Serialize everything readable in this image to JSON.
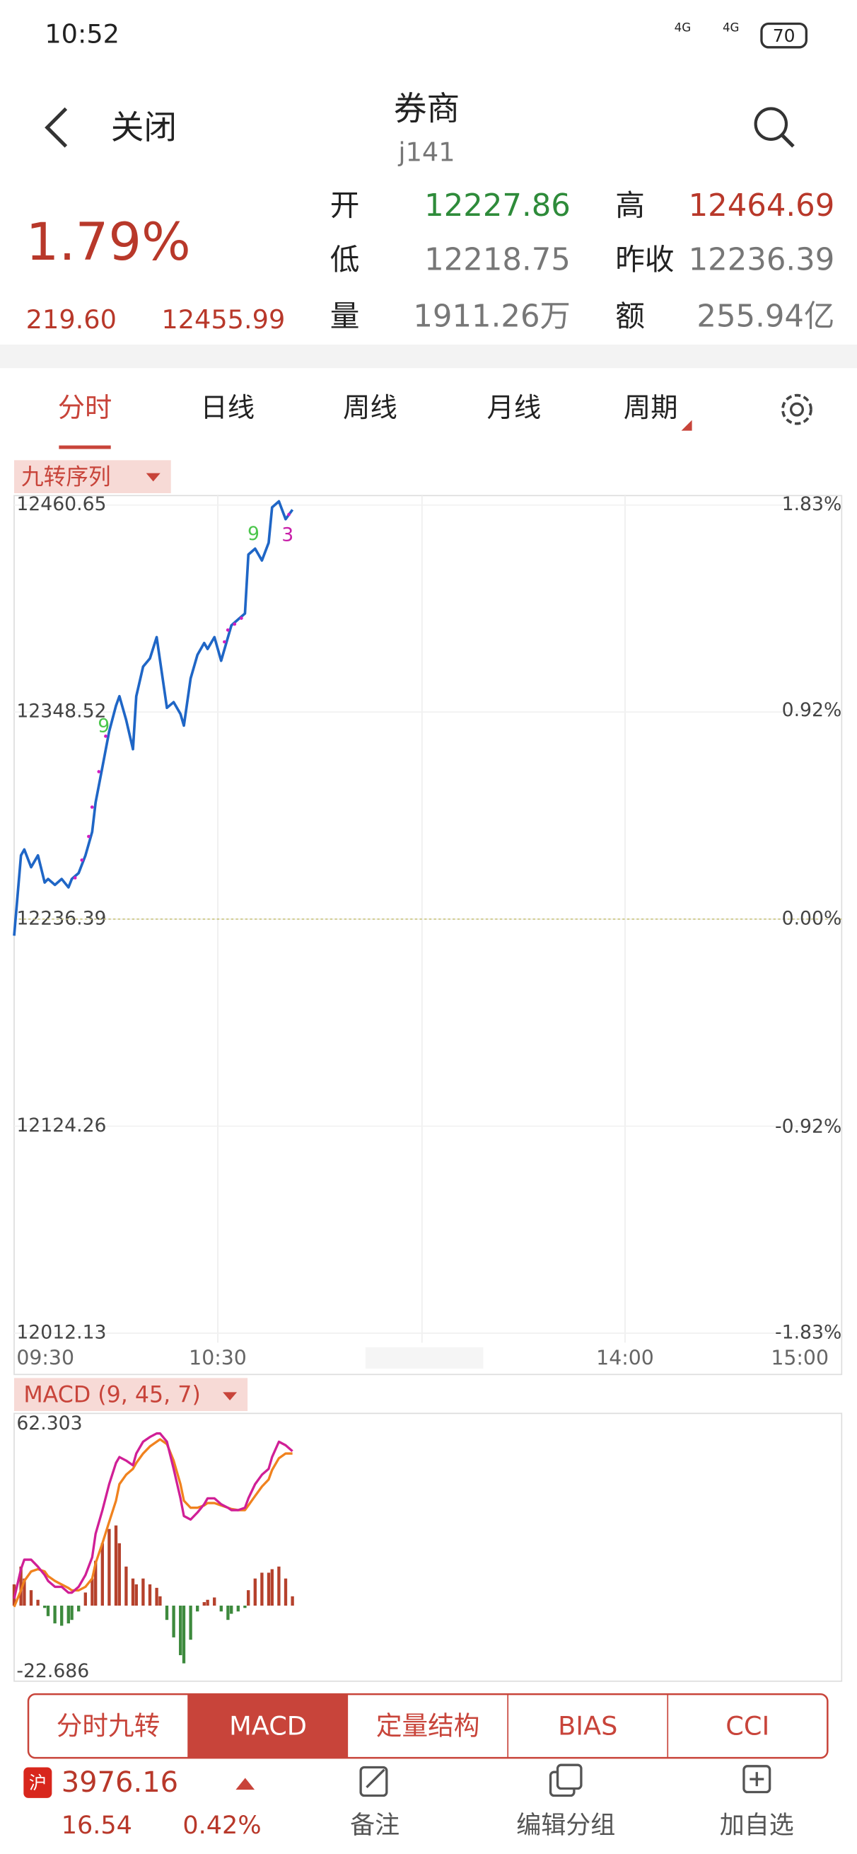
{
  "status_bar": {
    "time": "10:52",
    "network": "4G",
    "battery": "70"
  },
  "header": {
    "back": "关闭",
    "title": "券商",
    "subtitle": "j141"
  },
  "quote": {
    "change_pct": "1.79%",
    "change": "219.60",
    "price": "12455.99",
    "fields": [
      {
        "label": "开",
        "value": "12227.86"
      },
      {
        "label": "高",
        "value": "12464.69"
      },
      {
        "label": "低",
        "value": "12218.75"
      },
      {
        "label": "昨收",
        "value": "12236.39"
      },
      {
        "label": "量",
        "value": "1911.26万"
      },
      {
        "label": "额",
        "value": "255.94亿"
      }
    ]
  },
  "period_tabs": [
    "分时",
    "日线",
    "周线",
    "月线",
    "周期"
  ],
  "indicator_selector": "九转序列",
  "intraday_chart": {
    "type": "line",
    "x": [
      0,
      2,
      3,
      5,
      7,
      9,
      10,
      12,
      14,
      16,
      17,
      19,
      21,
      23,
      24,
      26,
      28,
      30,
      31,
      33,
      35,
      36,
      38,
      40,
      42,
      43,
      45,
      47,
      49,
      50,
      52,
      54,
      56,
      57,
      59,
      61,
      63,
      64,
      66,
      68,
      69,
      71,
      73,
      75,
      76,
      78,
      80,
      82
    ],
    "color": "#1f66c6",
    "values": [
      12227.4,
      12270.9,
      12274.1,
      12264.5,
      12270.9,
      12256.2,
      12258.1,
      12254.9,
      12258.1,
      12253.6,
      12258.1,
      12261.3,
      12270.9,
      12283.7,
      12299.6,
      12318.8,
      12338.0,
      12352.0,
      12357.1,
      12344.3,
      12328.4,
      12357.1,
      12373.1,
      12377.6,
      12389.1,
      12376.3,
      12350.8,
      12353.9,
      12347.5,
      12341.2,
      12366.7,
      12379.5,
      12385.9,
      12382.7,
      12389.1,
      12376.3,
      12389.1,
      12395.5,
      12398.7,
      12401.9,
      12433.8,
      12437.0,
      12430.6,
      12440.2,
      12459.4,
      12462.6,
      12453.0,
      12458.1
    ],
    "xlim": [
      0,
      240
    ],
    "xticks": [
      {
        "value": 0,
        "label": "09:30"
      },
      {
        "value": 60,
        "label": "10:30"
      },
      {
        "value": 180,
        "label": "14:00"
      },
      {
        "value": 240,
        "label": "15:00"
      }
    ],
    "ylim": [
      12012.13,
      12460.65
    ],
    "yticks": [
      12012.13,
      12124.26,
      12236.39,
      12348.52,
      12460.65
    ],
    "y2lim": [
      -1.83,
      1.83
    ],
    "y2ticks": [
      {
        "value": -1.83,
        "label": "-1.83%"
      },
      {
        "value": -0.92,
        "label": "-0.92%"
      },
      {
        "value": 0,
        "label": "0.00%"
      },
      {
        "value": 0.92,
        "label": "0.92%"
      },
      {
        "value": 1.83,
        "label": "1.83%"
      }
    ],
    "annotations": [
      {
        "text": "9",
        "color": "#4cc64c"
      },
      {
        "text": "9",
        "color": "#4cc64c"
      },
      {
        "text": "3",
        "color": "#c81ea8"
      }
    ]
  },
  "macd_chart": {
    "type": "macd",
    "title": "MACD (9, 45, 7)",
    "x": [
      0,
      2,
      3,
      5,
      7,
      9,
      10,
      12,
      14,
      16,
      17,
      19,
      21,
      23,
      24,
      26,
      28,
      30,
      31,
      33,
      35,
      36,
      38,
      40,
      42,
      43,
      45,
      47,
      49,
      50,
      52,
      54,
      56,
      57,
      59,
      61,
      63,
      64,
      66,
      68,
      69,
      71,
      73,
      75,
      76,
      78,
      80,
      82
    ],
    "xlim": [
      0,
      240
    ],
    "ylim": [
      -22.686,
      62.303
    ],
    "yticks": [
      -22.686,
      62.303
    ],
    "series": [
      {
        "color": "#d01f96",
        "values": [
          2.4,
          12.52,
          15.76,
          15.76,
          13.33,
          10.5,
          8.48,
          6.45,
          6.45,
          4.43,
          4.43,
          6.45,
          10.5,
          16.57,
          24.67,
          32.76,
          41.66,
          48.95,
          50.97,
          49.76,
          48.14,
          52.19,
          56.23,
          57.85,
          59.07,
          59.07,
          56.23,
          46.92,
          36.81,
          30.74,
          29.52,
          31.95,
          34.78,
          36.81,
          36.81,
          34.78,
          33.57,
          32.76,
          32.76,
          33.57,
          36.81,
          41.66,
          44.9,
          46.92,
          50.97,
          56.23,
          55.02,
          53.0
        ]
      },
      {
        "color": "#f0821e",
        "values": [
          -0.43,
          5.24,
          8.48,
          11.71,
          12.52,
          11.71,
          10.1,
          8.48,
          7.26,
          6.05,
          5.24,
          5.24,
          6.45,
          9.29,
          14.55,
          21.43,
          28.71,
          36.0,
          41.66,
          44.9,
          46.92,
          48.95,
          52.19,
          54.61,
          56.23,
          57.04,
          55.42,
          49.76,
          41.66,
          36.0,
          33.57,
          33.57,
          34.38,
          35.19,
          35.19,
          34.38,
          33.57,
          33.16,
          32.76,
          32.76,
          34.38,
          37.62,
          40.85,
          43.28,
          46.52,
          50.57,
          52.19,
          52.19
        ]
      }
    ],
    "histogram": {
      "up_color": "#b5412c",
      "down_color": "#3d8a3d",
      "values": [
        7.3,
        13.4,
        9.3,
        5.3,
        2.0,
        -0.8,
        -3.6,
        -6.1,
        -6.9,
        -6.1,
        -4.9,
        -2.0,
        4.5,
        9.3,
        15.4,
        21.4,
        26.3,
        27.5,
        21.4,
        13.4,
        9.3,
        7.3,
        9.3,
        7.3,
        6.1,
        3.2,
        -4.9,
        -10.9,
        -17.0,
        -19.8,
        -11.7,
        -2.0,
        1.2,
        2.0,
        2.8,
        -2.0,
        -4.9,
        -2.8,
        -2.0,
        -0.8,
        5.3,
        9.3,
        11.3,
        11.3,
        12.5,
        13.4,
        9.3,
        3.2
      ]
    }
  },
  "indicator_tabs": [
    "分时九转",
    "MACD",
    "定量结构",
    "BIAS",
    "CCI"
  ],
  "index_bar": {
    "market": "沪",
    "price": "3976.16",
    "change": "16.54",
    "change_pct": "0.42%"
  },
  "actions": [
    "备注",
    "编辑分组",
    "加自选"
  ]
}
